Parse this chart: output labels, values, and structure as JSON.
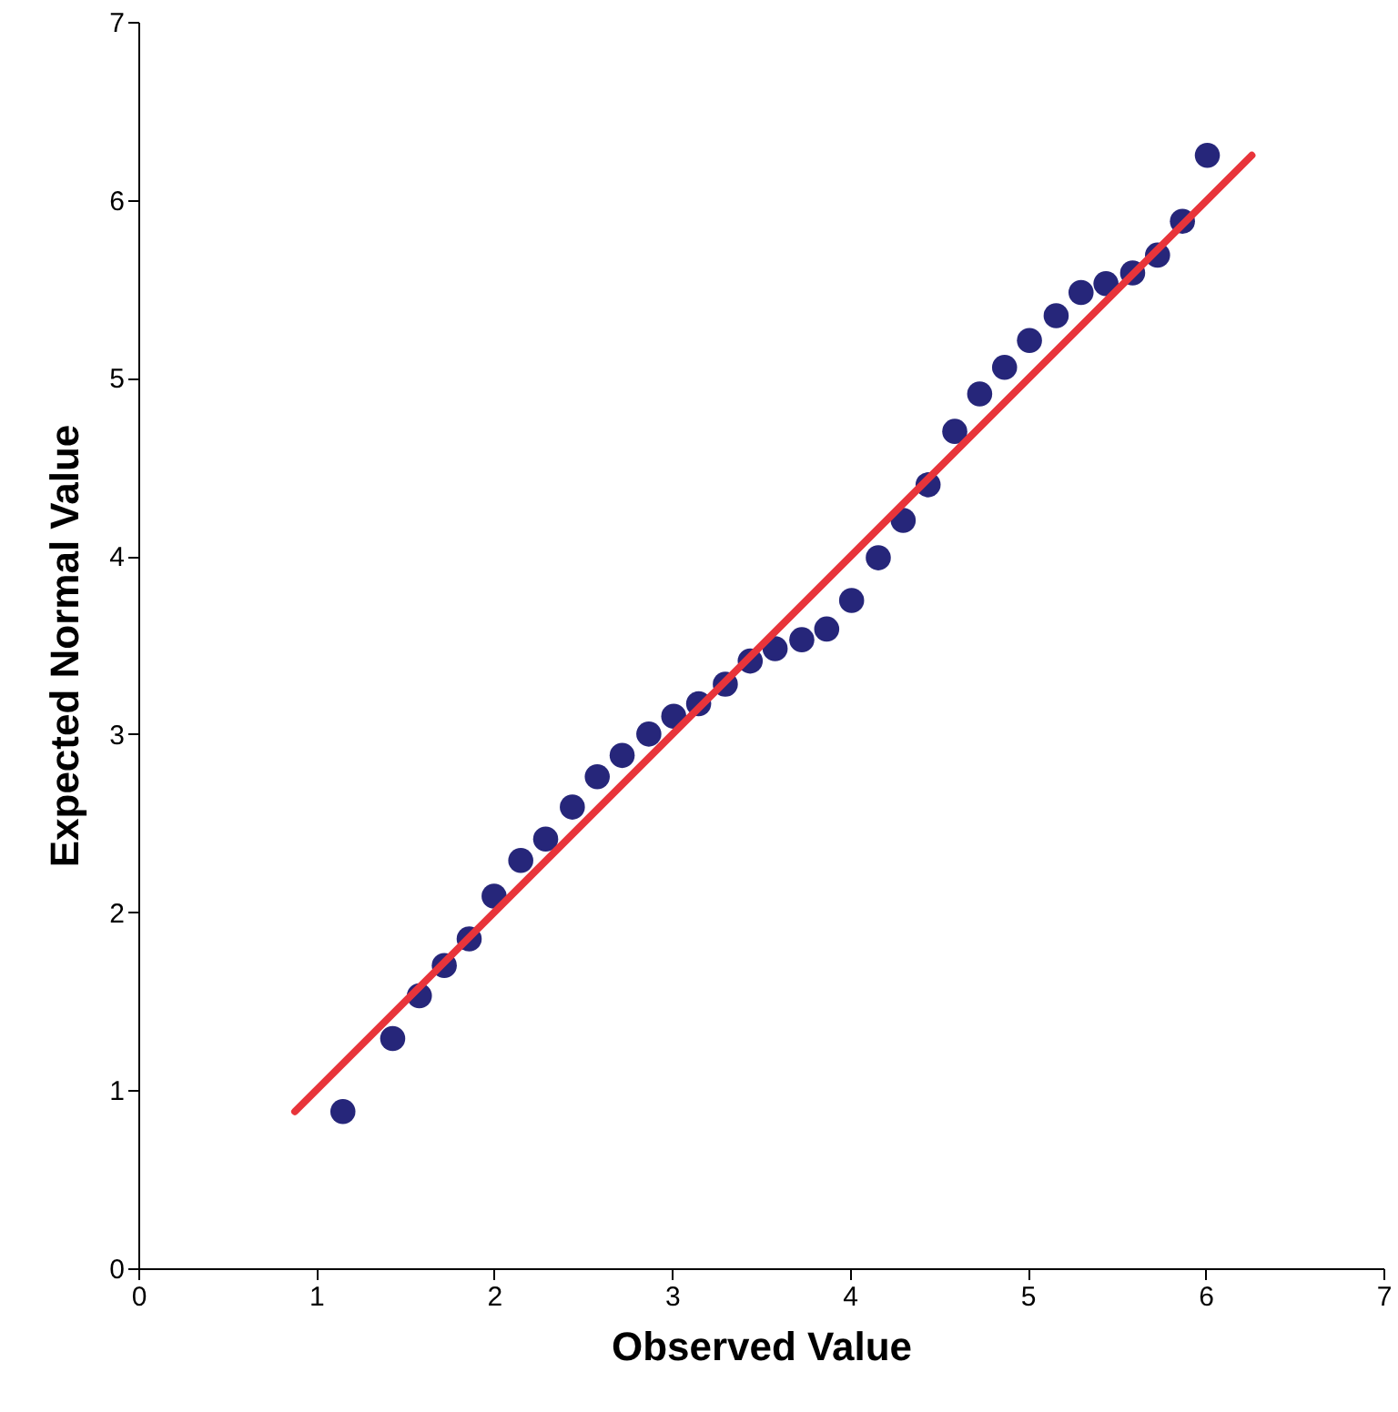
{
  "chart_data": {
    "type": "scatter",
    "xlabel": "Observed Value",
    "ylabel": "Expected Normal Value",
    "xlim": [
      0,
      7
    ],
    "ylim": [
      0,
      7
    ],
    "xticks": [
      0,
      1,
      2,
      3,
      4,
      5,
      6,
      7
    ],
    "yticks": [
      0,
      1,
      2,
      3,
      4,
      5,
      6,
      7
    ],
    "grid": false,
    "series": [
      {
        "marker": "circle",
        "color": "#26267a",
        "x": [
          1.15,
          1.43,
          1.58,
          1.72,
          1.86,
          2.0,
          2.15,
          2.29,
          2.44,
          2.58,
          2.72,
          2.87,
          3.01,
          3.15,
          3.3,
          3.44,
          3.58,
          3.73,
          3.87,
          4.01,
          4.16,
          4.3,
          4.44,
          4.59,
          4.73,
          4.87,
          5.01,
          5.16,
          5.3,
          5.44,
          5.59,
          5.73,
          5.87,
          6.01
        ],
        "values": [
          0.88,
          1.29,
          1.53,
          1.7,
          1.85,
          2.09,
          2.29,
          2.41,
          2.59,
          2.76,
          2.88,
          3.0,
          3.1,
          3.17,
          3.28,
          3.41,
          3.48,
          3.53,
          3.59,
          3.75,
          3.99,
          4.2,
          4.4,
          4.7,
          4.91,
          5.06,
          5.21,
          5.35,
          5.48,
          5.53,
          5.59,
          5.69,
          5.88,
          6.25
        ]
      },
      {
        "type": "line",
        "color": "#e8343a",
        "x": [
          0.88,
          6.26
        ],
        "values": [
          0.88,
          6.25
        ]
      }
    ]
  }
}
